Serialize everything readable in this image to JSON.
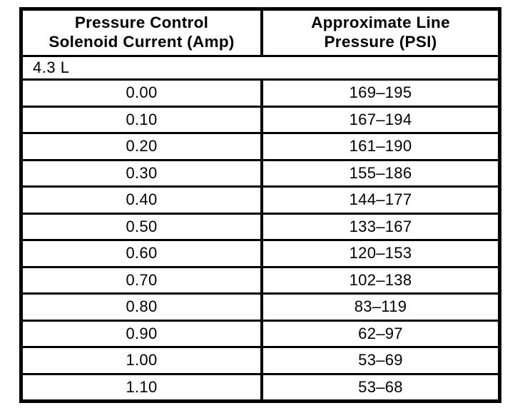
{
  "table": {
    "headers": [
      {
        "line1": "Pressure Control",
        "line2": "Solenoid Current (Amp)"
      },
      {
        "line1": "Approximate Line",
        "line2": "Pressure (PSI)"
      }
    ],
    "section_label": "4.3 L",
    "rows": [
      {
        "current": "0.00",
        "pressure": "169–195"
      },
      {
        "current": "0.10",
        "pressure": "167–194"
      },
      {
        "current": "0.20",
        "pressure": "161–190"
      },
      {
        "current": "0.30",
        "pressure": "155–186"
      },
      {
        "current": "0.40",
        "pressure": "144–177"
      },
      {
        "current": "0.50",
        "pressure": "133–167"
      },
      {
        "current": "0.60",
        "pressure": "120–153"
      },
      {
        "current": "0.70",
        "pressure": "102–138"
      },
      {
        "current": "0.80",
        "pressure": "83–119"
      },
      {
        "current": "0.90",
        "pressure": "62–97"
      },
      {
        "current": "1.00",
        "pressure": "53–69"
      },
      {
        "current": "1.10",
        "pressure": "53–68"
      }
    ]
  },
  "colors": {
    "border": "#000000",
    "background": "#ffffff",
    "text": "#000000"
  }
}
